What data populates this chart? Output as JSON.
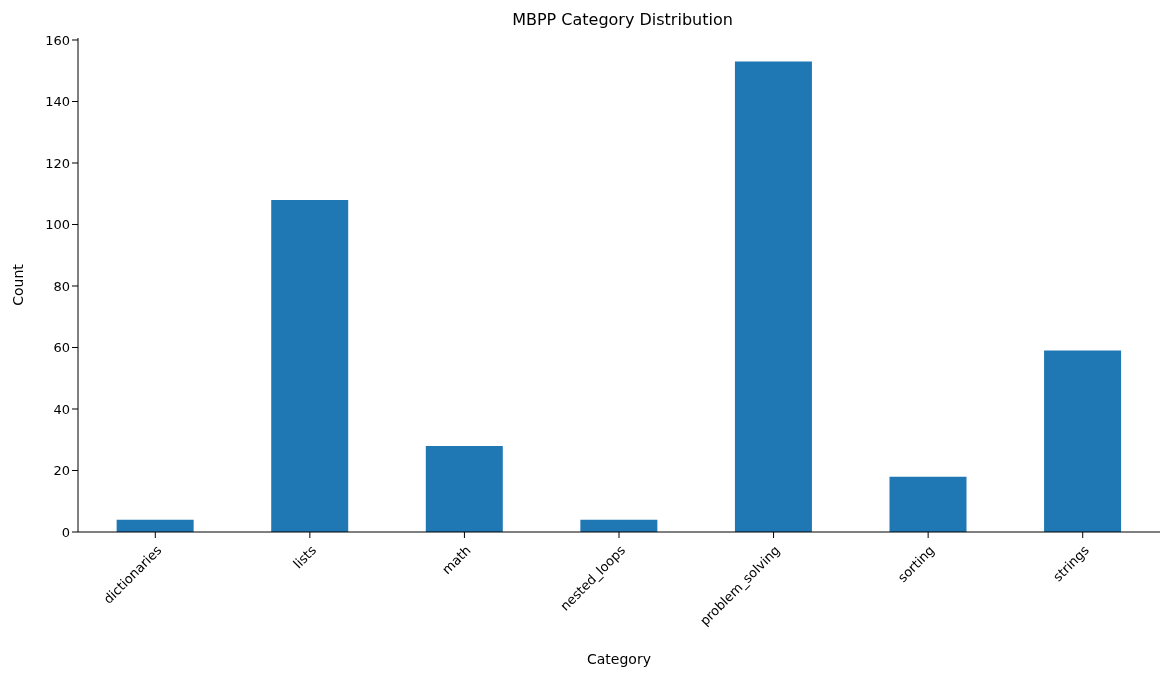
{
  "chart_data": {
    "type": "bar",
    "title": "MBPP Category Distribution",
    "xlabel": "Category",
    "ylabel": "Count",
    "categories": [
      "dictionaries",
      "lists",
      "math",
      "nested_loops",
      "problem_solving",
      "sorting",
      "strings"
    ],
    "values": [
      4,
      108,
      28,
      4,
      153,
      18,
      59
    ],
    "color": "#1f77b4",
    "ylim": [
      0,
      160.65
    ],
    "yticks": [
      0,
      20,
      40,
      60,
      80,
      100,
      120,
      140,
      160
    ],
    "grid": false
  }
}
